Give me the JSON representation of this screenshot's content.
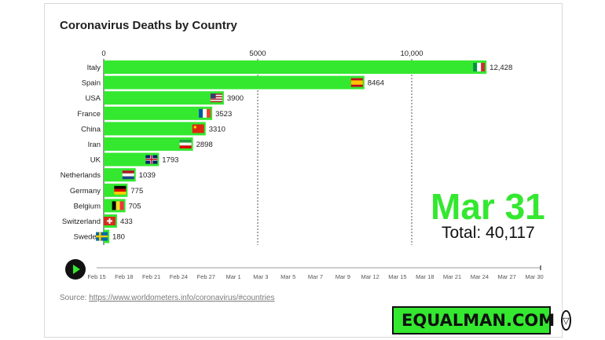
{
  "title": "Coronavirus Deaths by Country",
  "date_display": "Mar 31",
  "total_label": "Total:",
  "total_value": "40,117",
  "source_prefix": "Source:",
  "source_link": "https://www.worldometers.info/coronavirus/#countries",
  "brand": "EQUALMAN.COM",
  "colors": {
    "bar": "#33e82f",
    "date": "#33e82f",
    "gridline": "#555555"
  },
  "icons": {
    "play": "play-icon",
    "brand": "shield-v-icon"
  },
  "timeline": {
    "labels": [
      "Feb 15",
      "Feb 18",
      "Feb 21",
      "Feb 24",
      "Feb 27",
      "Mar 1",
      "Mar 3",
      "Mar 5",
      "Mar 7",
      "Mar 9",
      "Mar 12",
      "Mar 15",
      "Mar 18",
      "Mar 21",
      "Mar 24",
      "Mar 27",
      "Mar 30"
    ]
  },
  "chart_data": {
    "type": "bar",
    "orientation": "horizontal",
    "title": "Coronavirus Deaths by Country",
    "categories": [
      "Italy",
      "Spain",
      "USA",
      "France",
      "China",
      "Iran",
      "UK",
      "Netherlands",
      "Germany",
      "Belgium",
      "Switzerland",
      "Sweden"
    ],
    "values": [
      12428,
      8464,
      3900,
      3523,
      3310,
      2898,
      1793,
      1039,
      775,
      705,
      433,
      180
    ],
    "value_labels": [
      "12,428",
      "8464",
      "3900",
      "3523",
      "3310",
      "2898",
      "1793",
      "1039",
      "775",
      "705",
      "433",
      "180"
    ],
    "flags": [
      "italy-flag",
      "spain-flag",
      "usa-flag",
      "france-flag",
      "china-flag",
      "iran-flag",
      "uk-flag",
      "netherlands-flag",
      "germany-flag",
      "belgium-flag",
      "switzerland-flag",
      "sweden-flag"
    ],
    "xticks": [
      0,
      5000,
      10000
    ],
    "xtick_labels": [
      "0",
      "5000",
      "10,000"
    ],
    "xlim": [
      0,
      12428
    ],
    "grid": "dashed vertical at ticks",
    "axis_position": "top"
  }
}
